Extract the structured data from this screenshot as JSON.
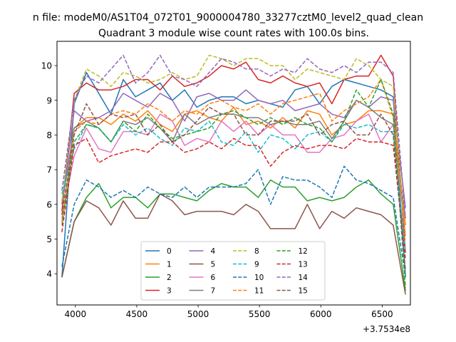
{
  "chart_data": {
    "type": "line",
    "suptitle": "n file: modeM0/AS1T04_072T01_9000004780_33277cztM0_level2_quad_clean",
    "title": "Quadrant 3 module wise count rates with 100.0s bins.",
    "xlabel": "",
    "ylabel": "",
    "x_offset_label": "+3.7534e8",
    "x_offset": 375340000,
    "xlim": [
      3850,
      6730
    ],
    "ylim": [
      3.1,
      10.7
    ],
    "xticks": [
      4000,
      4500,
      5000,
      5500,
      6000,
      6500
    ],
    "yticks": [
      4,
      5,
      6,
      7,
      8,
      9,
      10
    ],
    "grid": false,
    "legend_position": "lower center",
    "legend_columns": 4,
    "x": [
      3890,
      3990,
      4090,
      4190,
      4290,
      4390,
      4490,
      4590,
      4690,
      4790,
      4890,
      4990,
      5090,
      5190,
      5290,
      5390,
      5490,
      5590,
      5690,
      5790,
      5890,
      5990,
      6090,
      6190,
      6290,
      6390,
      6490,
      6590,
      6690
    ],
    "series": [
      {
        "name": "0",
        "color": "#1f77b4",
        "dash": "solid",
        "values": [
          3.9,
          8.9,
          9.8,
          9.2,
          8.6,
          9.6,
          9.1,
          9.3,
          9.5,
          9.0,
          9.3,
          8.8,
          9.0,
          9.1,
          9.1,
          8.9,
          9.0,
          8.9,
          8.8,
          9.3,
          9.4,
          8.9,
          9.4,
          9.6,
          9.5,
          9.4,
          9.3,
          9.1,
          3.9
        ]
      },
      {
        "name": "1",
        "color": "#ff7f0e",
        "dash": "solid",
        "values": [
          6.0,
          8.2,
          8.5,
          8.5,
          8.3,
          8.6,
          8.4,
          8.7,
          8.3,
          8.1,
          8.6,
          8.7,
          8.5,
          8.4,
          8.8,
          8.3,
          8.4,
          8.2,
          8.5,
          8.2,
          8.7,
          8.6,
          8.0,
          8.3,
          8.4,
          8.7,
          8.7,
          8.6,
          5.4
        ]
      },
      {
        "name": "2",
        "color": "#2ca02c",
        "dash": "solid",
        "values": [
          3.9,
          5.5,
          6.2,
          6.6,
          5.9,
          6.2,
          6.2,
          5.9,
          6.3,
          6.3,
          6.2,
          6.1,
          6.4,
          6.6,
          6.5,
          6.5,
          6.2,
          6.7,
          6.5,
          6.5,
          6.1,
          6.2,
          6.1,
          6.2,
          6.5,
          6.7,
          6.3,
          6.0,
          3.5
        ]
      },
      {
        "name": "3",
        "color": "#d62728",
        "dash": "solid",
        "values": [
          5.8,
          9.2,
          9.5,
          9.3,
          9.3,
          9.4,
          9.6,
          9.6,
          9.3,
          9.7,
          9.4,
          9.5,
          9.7,
          10.0,
          9.9,
          10.1,
          9.6,
          9.5,
          9.7,
          9.5,
          9.4,
          9.5,
          8.9,
          9.6,
          9.7,
          9.7,
          10.3,
          9.7,
          4.6
        ]
      },
      {
        "name": "4",
        "color": "#9467bd",
        "dash": "solid",
        "values": [
          6.0,
          8.7,
          8.4,
          8.5,
          8.7,
          9.2,
          9.0,
          8.8,
          9.2,
          9.0,
          8.4,
          9.1,
          9.2,
          9.0,
          9.0,
          9.3,
          9.0,
          8.9,
          9.0,
          8.7,
          8.8,
          8.9,
          8.6,
          8.5,
          9.0,
          8.8,
          9.1,
          9.0,
          5.9
        ]
      },
      {
        "name": "5",
        "color": "#8c564b",
        "dash": "solid",
        "values": [
          3.9,
          5.5,
          6.1,
          5.9,
          5.4,
          6.1,
          5.6,
          5.6,
          6.3,
          6.1,
          5.7,
          5.8,
          5.8,
          5.8,
          5.7,
          6.0,
          5.8,
          5.3,
          5.3,
          5.3,
          6.0,
          5.3,
          5.8,
          5.6,
          5.9,
          5.8,
          5.7,
          5.4,
          3.4
        ]
      },
      {
        "name": "6",
        "color": "#e377c2",
        "dash": "solid",
        "values": [
          5.6,
          7.4,
          8.2,
          7.6,
          7.5,
          8.1,
          8.1,
          8.0,
          8.6,
          8.4,
          7.7,
          7.9,
          7.8,
          8.4,
          8.1,
          8.4,
          8.0,
          8.3,
          8.0,
          8.0,
          7.5,
          7.5,
          7.9,
          8.0,
          8.4,
          8.6,
          7.8,
          8.3,
          5.1
        ]
      },
      {
        "name": "7",
        "color": "#7f7f7f",
        "dash": "solid",
        "values": [
          6.0,
          8.2,
          8.4,
          8.2,
          7.8,
          8.4,
          8.3,
          8.5,
          8.2,
          7.8,
          8.6,
          8.3,
          8.5,
          8.6,
          8.6,
          8.5,
          8.5,
          8.3,
          8.4,
          8.3,
          8.3,
          8.4,
          7.9,
          8.4,
          9.0,
          8.8,
          8.5,
          8.3,
          5.6
        ]
      },
      {
        "name": "8",
        "color": "#bcbd22",
        "dash": "dashed",
        "values": [
          6.1,
          9.0,
          9.9,
          9.7,
          9.4,
          9.8,
          9.7,
          9.5,
          9.6,
          9.8,
          9.6,
          9.7,
          10.3,
          10.2,
          10.0,
          10.2,
          10.2,
          10.0,
          10.0,
          9.6,
          9.9,
          9.8,
          9.7,
          9.6,
          10.2,
          10.0,
          9.6,
          9.4,
          5.0
        ]
      },
      {
        "name": "9",
        "color": "#17becf",
        "dash": "dashed",
        "values": [
          6.3,
          7.6,
          8.3,
          8.2,
          7.8,
          8.3,
          8.0,
          8.2,
          7.9,
          7.7,
          8.2,
          8.1,
          8.4,
          7.8,
          7.7,
          8.1,
          7.5,
          8.0,
          7.9,
          7.6,
          8.0,
          8.1,
          7.8,
          8.3,
          8.2,
          8.3,
          8.1,
          8.1,
          4.6
        ]
      },
      {
        "name": "10",
        "color": "#1f77b4",
        "dash": "dashed",
        "values": [
          4.2,
          6.0,
          6.7,
          6.5,
          6.2,
          6.4,
          6.2,
          6.5,
          6.3,
          6.2,
          6.5,
          6.2,
          6.5,
          6.5,
          6.5,
          6.6,
          7.0,
          6.0,
          6.8,
          6.7,
          6.7,
          6.5,
          6.2,
          7.1,
          6.7,
          6.6,
          6.4,
          6.2,
          3.9
        ]
      },
      {
        "name": "11",
        "color": "#ff7f0e",
        "dash": "dashed",
        "values": [
          5.5,
          8.1,
          8.4,
          8.3,
          8.6,
          8.7,
          8.6,
          8.9,
          8.7,
          8.4,
          8.7,
          8.6,
          8.9,
          9.0,
          8.8,
          8.7,
          8.9,
          8.6,
          8.9,
          9.0,
          9.1,
          9.2,
          8.4,
          8.7,
          8.9,
          9.1,
          9.6,
          8.5,
          5.1
        ]
      },
      {
        "name": "12",
        "color": "#2ca02c",
        "dash": "dashed",
        "values": [
          5.4,
          7.8,
          8.3,
          8.2,
          7.8,
          8.4,
          8.1,
          8.6,
          8.2,
          7.9,
          8.0,
          8.1,
          8.2,
          8.6,
          8.7,
          8.5,
          8.3,
          8.5,
          8.3,
          8.5,
          8.3,
          8.2,
          7.8,
          8.4,
          9.3,
          8.8,
          9.6,
          8.6,
          3.6
        ]
      },
      {
        "name": "13",
        "color": "#d62728",
        "dash": "dashed",
        "values": [
          5.2,
          7.7,
          7.9,
          7.2,
          7.4,
          7.5,
          7.6,
          7.5,
          7.8,
          7.8,
          7.5,
          7.6,
          7.8,
          7.6,
          7.9,
          7.7,
          7.7,
          7.1,
          7.5,
          7.7,
          7.6,
          7.7,
          7.7,
          7.6,
          7.9,
          7.8,
          7.8,
          7.7,
          4.4
        ]
      },
      {
        "name": "14",
        "color": "#9467bd",
        "dash": "dashed",
        "values": [
          6.4,
          9.0,
          9.7,
          9.5,
          9.9,
          10.3,
          9.5,
          9.8,
          10.3,
          9.7,
          9.6,
          9.4,
          9.8,
          10.2,
          10.1,
          9.9,
          9.9,
          9.7,
          9.9,
          9.8,
          10.2,
          9.9,
          9.8,
          10.0,
          9.8,
          10.1,
          10.1,
          9.8,
          5.6
        ]
      },
      {
        "name": "15",
        "color": "#8c564b",
        "dash": "dashed",
        "values": [
          5.7,
          8.0,
          8.9,
          8.3,
          8.6,
          8.5,
          8.6,
          8.0,
          8.3,
          7.8,
          8.0,
          8.4,
          8.8,
          8.6,
          8.6,
          8.0,
          8.0,
          8.4,
          8.4,
          8.4,
          8.6,
          8.0,
          8.3,
          8.4,
          8.0,
          8.0,
          8.6,
          8.0,
          4.1
        ]
      }
    ]
  }
}
